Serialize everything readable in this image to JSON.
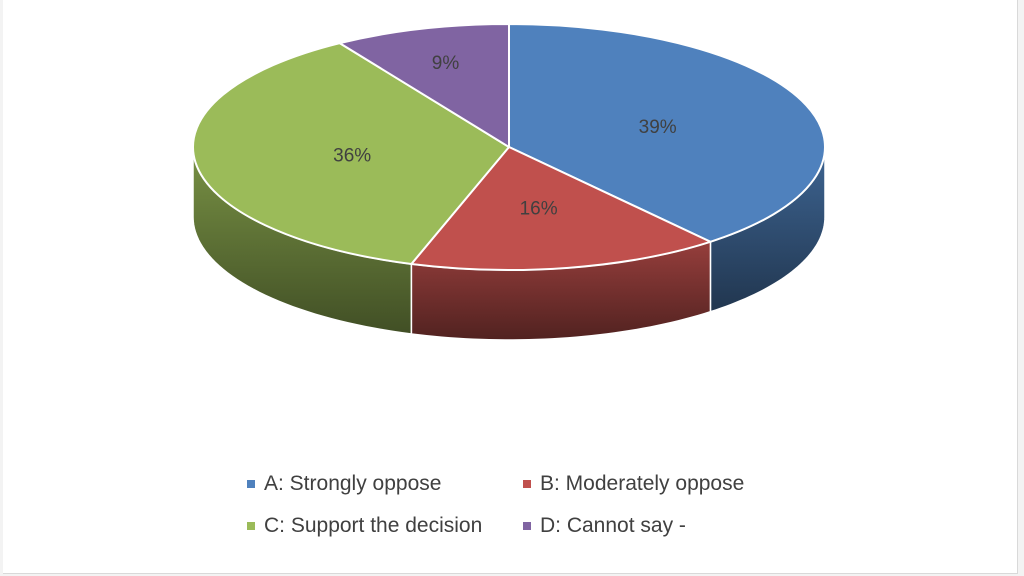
{
  "chart_data": {
    "type": "pie",
    "style": "3d",
    "title": "",
    "legend_position": "bottom",
    "slices": [
      {
        "category": "A: Strongly oppose",
        "value": 39,
        "label": "39%",
        "color": "#4f81bd"
      },
      {
        "category": "B: Moderately oppose",
        "value": 16,
        "label": "16%",
        "color": "#c0504d"
      },
      {
        "category": "C: Support the decision",
        "value": 36,
        "label": "36%",
        "color": "#9bbb59"
      },
      {
        "category": "D: Cannot say -",
        "value": 9,
        "label": "9%",
        "color": "#8064a2"
      }
    ]
  }
}
